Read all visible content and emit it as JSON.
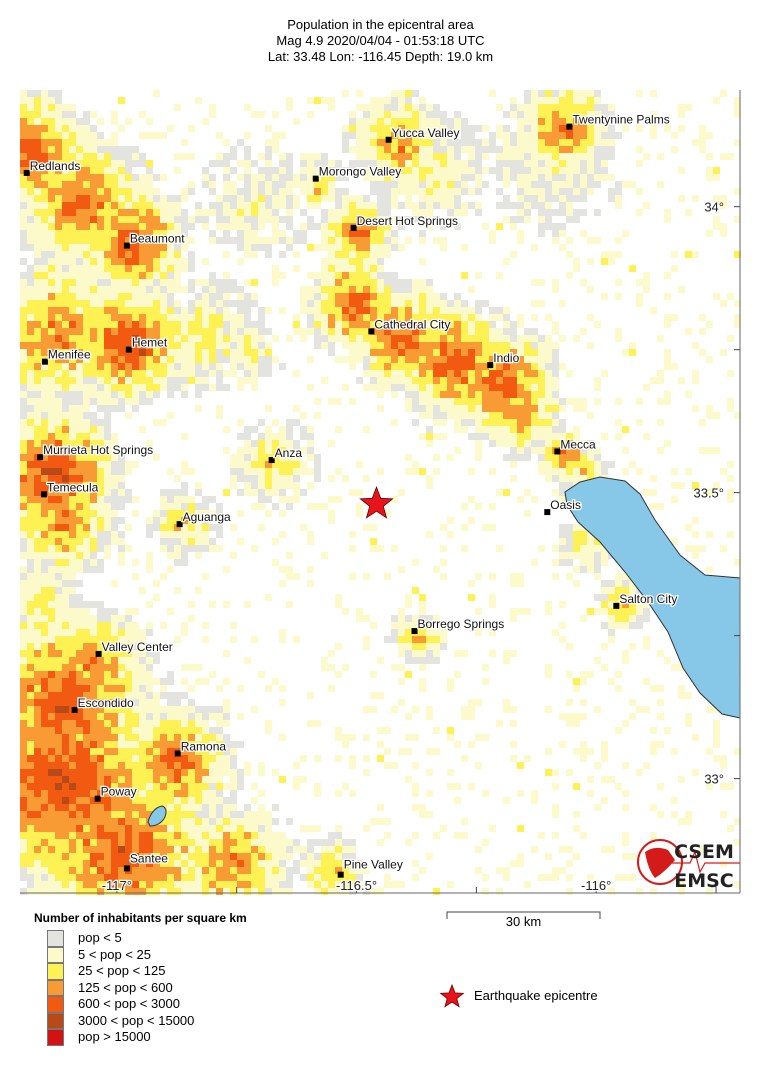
{
  "header": {
    "title": "Population in the epicentral area",
    "line2": "Mag 4.9  2020/04/04 - 01:53:18 UTC",
    "line3": "Lat: 33.48    Lon: -116.45    Depth:  19.0 km"
  },
  "map": {
    "extent": {
      "lon_min": -117.202,
      "lon_max": -115.7,
      "lat_min": 32.8,
      "lat_max": 34.204
    },
    "epicentre": {
      "lat": 33.48,
      "lon": -116.45,
      "color": "#e8141b"
    },
    "water_color": "#87c8e8",
    "lat_ticks": [
      {
        "value": 34,
        "label": "34°"
      },
      {
        "value": 33.5,
        "label": "33.5°"
      },
      {
        "value": 33,
        "label": "33°"
      }
    ],
    "lon_ticks": [
      {
        "value": -117,
        "label": "-117°"
      },
      {
        "value": -116.5,
        "label": "-116.5°"
      },
      {
        "value": -116,
        "label": "-116°"
      }
    ],
    "cities": [
      {
        "name": "Twentynine Palms",
        "lon": -116.056,
        "lat": 34.14
      },
      {
        "name": "Yucca Valley",
        "lon": -116.433,
        "lat": 34.117
      },
      {
        "name": "Redlands",
        "lon": -117.188,
        "lat": 34.059
      },
      {
        "name": "Morongo Valley",
        "lon": -116.585,
        "lat": 34.049
      },
      {
        "name": "Desert Hot Springs",
        "lon": -116.506,
        "lat": 33.963
      },
      {
        "name": "Beaumont",
        "lon": -116.979,
        "lat": 33.932
      },
      {
        "name": "Cathedral City",
        "lon": -116.469,
        "lat": 33.782
      },
      {
        "name": "Hemet",
        "lon": -116.975,
        "lat": 33.75
      },
      {
        "name": "Indio",
        "lon": -116.221,
        "lat": 33.723
      },
      {
        "name": "Menifee",
        "lon": -117.15,
        "lat": 33.729
      },
      {
        "name": "Mecca",
        "lon": -116.081,
        "lat": 33.572
      },
      {
        "name": "Murrieta Hot Springs",
        "lon": -117.16,
        "lat": 33.562
      },
      {
        "name": "Anza",
        "lon": -116.677,
        "lat": 33.557
      },
      {
        "name": "Temecula",
        "lon": -117.152,
        "lat": 33.497
      },
      {
        "name": "Oasis",
        "lon": -116.102,
        "lat": 33.466
      },
      {
        "name": "Aguanga",
        "lon": -116.869,
        "lat": 33.445
      },
      {
        "name": "Salton City",
        "lon": -115.958,
        "lat": 33.302
      },
      {
        "name": "Borrego Springs",
        "lon": -116.379,
        "lat": 33.258
      },
      {
        "name": "Valley Center",
        "lon": -117.038,
        "lat": 33.218
      },
      {
        "name": "Escondido",
        "lon": -117.088,
        "lat": 33.12
      },
      {
        "name": "Ramona",
        "lon": -116.873,
        "lat": 33.044
      },
      {
        "name": "Poway",
        "lon": -117.04,
        "lat": 32.965
      },
      {
        "name": "Santee",
        "lon": -116.979,
        "lat": 32.843
      },
      {
        "name": "Pine Valley",
        "lon": -116.533,
        "lat": 32.832
      }
    ]
  },
  "scale_bar": {
    "label": "30 km"
  },
  "legend": {
    "title": "Number of inhabitants per square km",
    "classes": [
      {
        "label": "pop < 5",
        "color": "#e3e3df"
      },
      {
        "label": "5 < pop < 25",
        "color": "#fcfacb"
      },
      {
        "label": "25 < pop < 125",
        "color": "#fdf153"
      },
      {
        "label": "125 < pop < 600",
        "color": "#f99b34"
      },
      {
        "label": "600 < pop < 3000",
        "color": "#f25a12"
      },
      {
        "label": "3000 < pop < 15000",
        "color": "#b84a17"
      },
      {
        "label": "pop > 15000",
        "color": "#d31212"
      }
    ],
    "epicentre_label": "Earthquake epicentre"
  },
  "logo": {
    "text_top": "CSEM",
    "text_bottom": "EMSC"
  }
}
